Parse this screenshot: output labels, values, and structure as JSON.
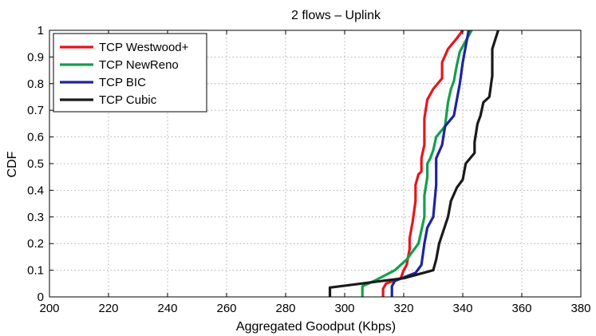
{
  "chart_data": {
    "type": "line",
    "title": "2 flows – Uplink",
    "xlabel": "Aggregated Goodput (Kbps)",
    "ylabel": "CDF",
    "xlim": [
      200,
      380
    ],
    "ylim": [
      0,
      1
    ],
    "xticks": [
      200,
      220,
      240,
      260,
      280,
      300,
      320,
      340,
      360,
      380
    ],
    "yticks": [
      0,
      0.1,
      0.2,
      0.3,
      0.4,
      0.5,
      0.6,
      0.7,
      0.8,
      0.9,
      1
    ],
    "ytick_labels": [
      "0",
      "0.1",
      "0.2",
      "0.3",
      "0.4",
      "0.5",
      "0.6",
      "0.7",
      "0.8",
      "0.9",
      "1"
    ],
    "grid": true,
    "legend_position": "top-left",
    "series": [
      {
        "name": "TCP Westwood+",
        "color": "#e8141c",
        "points": [
          [
            313,
            0
          ],
          [
            313,
            0.03
          ],
          [
            314,
            0.05
          ],
          [
            319,
            0.07
          ],
          [
            320,
            0.1
          ],
          [
            321,
            0.12
          ],
          [
            322,
            0.18
          ],
          [
            322,
            0.22
          ],
          [
            323,
            0.28
          ],
          [
            324,
            0.36
          ],
          [
            324,
            0.42
          ],
          [
            325,
            0.46
          ],
          [
            326,
            0.47
          ],
          [
            326,
            0.52
          ],
          [
            327,
            0.57
          ],
          [
            327,
            0.67
          ],
          [
            328,
            0.74
          ],
          [
            330,
            0.78
          ],
          [
            333,
            0.82
          ],
          [
            333,
            0.88
          ],
          [
            335,
            0.93
          ],
          [
            338,
            0.97
          ],
          [
            340,
            1
          ]
        ]
      },
      {
        "name": "TCP NewReno",
        "color": "#13a04b",
        "points": [
          [
            306,
            0
          ],
          [
            306,
            0.04
          ],
          [
            310,
            0.06
          ],
          [
            317,
            0.1
          ],
          [
            321,
            0.14
          ],
          [
            323,
            0.17
          ],
          [
            325,
            0.2
          ],
          [
            326,
            0.25
          ],
          [
            327,
            0.3
          ],
          [
            327,
            0.38
          ],
          [
            328,
            0.45
          ],
          [
            328,
            0.5
          ],
          [
            329,
            0.52
          ],
          [
            330,
            0.55
          ],
          [
            331,
            0.6
          ],
          [
            334,
            0.64
          ],
          [
            335,
            0.73
          ],
          [
            336,
            0.78
          ],
          [
            337,
            0.81
          ],
          [
            338,
            0.87
          ],
          [
            339,
            0.92
          ],
          [
            341,
            0.96
          ],
          [
            343,
            1
          ]
        ]
      },
      {
        "name": "TCP BIC",
        "color": "#1e24a0",
        "points": [
          [
            316,
            0
          ],
          [
            316,
            0.04
          ],
          [
            317,
            0.06
          ],
          [
            324,
            0.09
          ],
          [
            326,
            0.12
          ],
          [
            327,
            0.2
          ],
          [
            328,
            0.26
          ],
          [
            330,
            0.3
          ],
          [
            331,
            0.42
          ],
          [
            331,
            0.52
          ],
          [
            333,
            0.57
          ],
          [
            334,
            0.64
          ],
          [
            337,
            0.68
          ],
          [
            338,
            0.74
          ],
          [
            339,
            0.8
          ],
          [
            340,
            0.88
          ],
          [
            341,
            0.94
          ],
          [
            342,
            1
          ]
        ]
      },
      {
        "name": "TCP Cubic",
        "color": "#1a1a1a",
        "points": [
          [
            295,
            0
          ],
          [
            295,
            0.035
          ],
          [
            320,
            0.07
          ],
          [
            330,
            0.1
          ],
          [
            331,
            0.14
          ],
          [
            332,
            0.2
          ],
          [
            335,
            0.3
          ],
          [
            336,
            0.36
          ],
          [
            338,
            0.41
          ],
          [
            340,
            0.44
          ],
          [
            341,
            0.5
          ],
          [
            344,
            0.54
          ],
          [
            344,
            0.58
          ],
          [
            345,
            0.65
          ],
          [
            346,
            0.68
          ],
          [
            347,
            0.73
          ],
          [
            349,
            0.75
          ],
          [
            350,
            0.83
          ],
          [
            350,
            0.93
          ],
          [
            352,
            1
          ]
        ]
      }
    ]
  }
}
